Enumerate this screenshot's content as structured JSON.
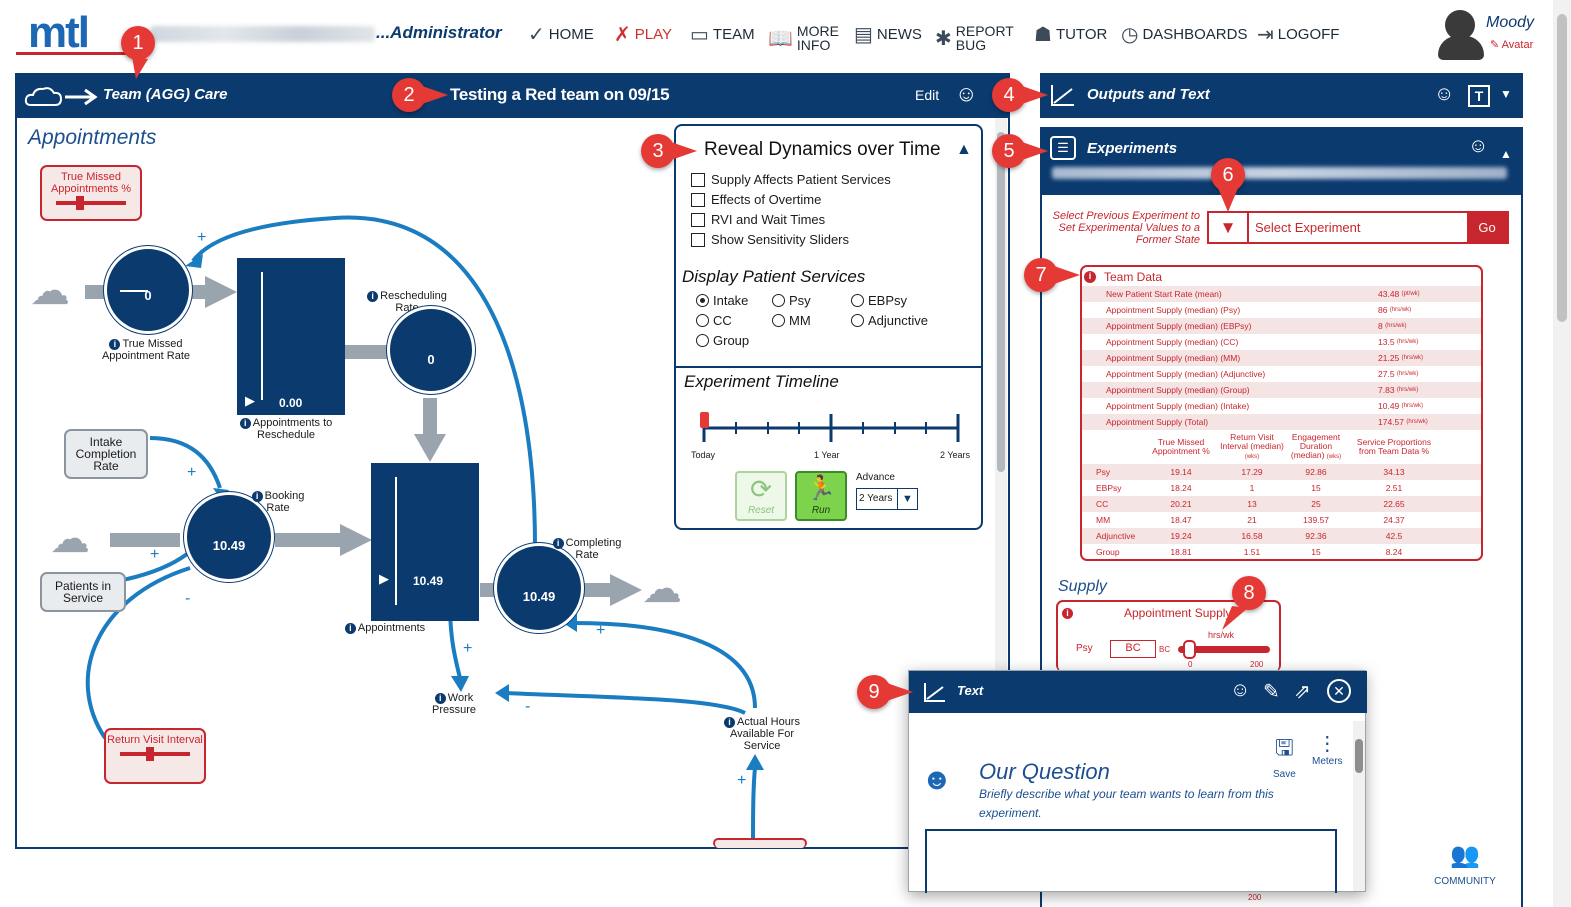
{
  "header": {
    "logo": "mtl",
    "role": "...Administrator",
    "nav": [
      {
        "label": "HOME",
        "icon": "checkmark-icon"
      },
      {
        "label": "PLAY",
        "icon": "play-figure-icon"
      },
      {
        "label": "TEAM",
        "icon": "chat-icon"
      },
      {
        "label_line1": "MORE",
        "label_line2": "INFO",
        "icon": "book-icon"
      },
      {
        "label": "NEWS",
        "icon": "newspaper-icon"
      },
      {
        "label_line1": "REPORT",
        "label_line2": "BUG",
        "icon": "bug-icon"
      },
      {
        "label": "TUTOR",
        "icon": "tutor-icon"
      },
      {
        "label": "DASHBOARDS",
        "icon": "dashboard-icon"
      },
      {
        "label": "LOGOFF",
        "icon": "logoff-icon"
      }
    ],
    "user_name": "Moody",
    "avatar_link": "Avatar"
  },
  "left_panel": {
    "team_label": "Team (AGG) Care",
    "title": "Testing a Red team on 09/15",
    "edit_label": "Edit",
    "section_title": "Appointments",
    "diagram": {
      "true_missed_card": "True Missed Appointments %",
      "true_missed_rate_label": "True Missed Appointment Rate",
      "true_missed_rate_value": "0",
      "appointments_to_reschedule_label": "Appointments to Reschedule",
      "appointments_to_reschedule_value": "0.00",
      "rescheduling_rate_label": "Rescheduling Rate",
      "rescheduling_rate_value": "0",
      "intake_completion_rate": "Intake Completion Rate",
      "patients_in_service": "Patients in Service",
      "booking_rate_label": "Booking Rate",
      "booking_rate_value": "10.49",
      "appointments_label": "Appointments",
      "appointments_value": "10.49",
      "completing_rate_label": "Completing Rate",
      "completing_rate_value": "10.49",
      "work_pressure_label": "Work Pressure",
      "actual_hours_label": "Actual Hours Available For Service",
      "return_visit_card": "Return Visit Interval",
      "plus": "+",
      "minus": "-"
    }
  },
  "reveal_panel": {
    "title": "Reveal Dynamics over Time",
    "checkboxes": [
      "Supply Affects Patient Services",
      "Effects of Overtime",
      "RVI and Wait Times",
      "Show Sensitivity Sliders"
    ],
    "display_title": "Display Patient Services",
    "radios": [
      "Intake",
      "Psy",
      "EBPsy",
      "CC",
      "MM",
      "Adjunctive",
      "Group"
    ],
    "selected_radio": "Intake",
    "timeline_title": "Experiment Timeline",
    "timeline_labels": [
      "Today",
      "1 Year",
      "2 Years"
    ],
    "reset_label": "Reset",
    "run_label": "Run",
    "advance_label": "Advance",
    "advance_value": "2 Years"
  },
  "right_panel": {
    "outputs_title": "Outputs and Text",
    "experiments_title": "Experiments",
    "select_prev_text": "Select Previous Experiment to Set Experimental Values to a Former State",
    "select_placeholder": "Select Experiment",
    "go_label": "Go",
    "team_data_title": "Team Data",
    "team_data_rows": [
      {
        "label": "New Patient Start Rate (mean)",
        "value": "43.48",
        "unit": "(pt/wk)"
      },
      {
        "label": "Appointment Supply (median) (Psy)",
        "value": "86",
        "unit": "(hrs/wk)"
      },
      {
        "label": "Appointment Supply (median) (EBPsy)",
        "value": "8",
        "unit": "(hrs/wk)"
      },
      {
        "label": "Appointment Supply (median) (CC)",
        "value": "13.5",
        "unit": "(hrs/wk)"
      },
      {
        "label": "Appointment Supply (median) (MM)",
        "value": "21.25",
        "unit": "(hrs/wk)"
      },
      {
        "label": "Appointment Supply (median) (Adjunctive)",
        "value": "27.5",
        "unit": "(hrs/wk)"
      },
      {
        "label": "Appointment Supply (median) (Group)",
        "value": "7.83",
        "unit": "(hrs/wk)"
      },
      {
        "label": "Appointment Supply (median) (Intake)",
        "value": "10.49",
        "unit": "(hrs/wk)"
      },
      {
        "label": "Appointment Supply (Total)",
        "value": "174.57",
        "unit": "(hrs/wk)"
      }
    ],
    "team_data_columns": [
      "True Missed Appointment %",
      "Return Visit Interval (median)",
      "Engagement Duration (median)",
      "Service Proportions from Team Data %"
    ],
    "team_data_units": [
      "",
      "(wks)",
      "(wks)",
      ""
    ],
    "team_data_grid": [
      [
        "Psy",
        "19.14",
        "17.29",
        "92.86",
        "34.13"
      ],
      [
        "EBPsy",
        "18.24",
        "1",
        "15",
        "2.51"
      ],
      [
        "CC",
        "20.21",
        "13",
        "25",
        "22.65"
      ],
      [
        "MM",
        "18.47",
        "21",
        "139.57",
        "24.37"
      ],
      [
        "Adjunctive",
        "19.24",
        "16.58",
        "92.36",
        "42.5"
      ],
      [
        "Group",
        "18.81",
        "1.51",
        "15",
        "8.24"
      ]
    ],
    "supply_title": "Supply",
    "appointment_supply_title": "Appointment Supply",
    "supply_units": "hrs/wk",
    "supply_row_label": "Psy",
    "supply_bc": "BC",
    "supply_bc_small": "BC",
    "supply_min": "0",
    "supply_max": "200",
    "bottom_max": "200",
    "community_label": "COMMUNITY"
  },
  "text_popup": {
    "title": "Text",
    "save_label": "Save",
    "meters_label": "Meters",
    "question_title": "Our Question",
    "question_desc": "Briefly describe what your team wants to learn from this experiment."
  },
  "badges": [
    "1",
    "2",
    "3",
    "4",
    "5",
    "6",
    "7",
    "8",
    "9"
  ],
  "colors": {
    "navy": "#0b3a6f",
    "accent_blue": "#1c68b4",
    "red": "#c8262e",
    "badge_red": "#e53935",
    "flow_gray": "#9aa4ae",
    "arrow_blue": "#1a7cc1"
  }
}
